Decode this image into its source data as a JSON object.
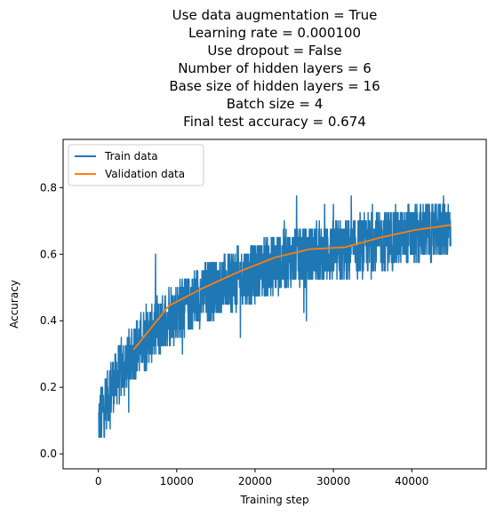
{
  "chart_data": {
    "type": "line",
    "title_lines": [
      "Use data augmentation = True",
      "Learning rate = 0.000100",
      "Use dropout = False",
      "Number of hidden layers = 6",
      "Base size of hidden layers = 16",
      "Batch size = 4",
      "Final test accuracy = 0.674"
    ],
    "xlabel": "Training step",
    "ylabel": "Accuracy",
    "xlim": [
      -4500,
      49500
    ],
    "ylim": [
      -0.045,
      0.945
    ],
    "xticks": [
      0,
      10000,
      20000,
      30000,
      40000
    ],
    "xtick_labels": [
      "0",
      "10000",
      "20000",
      "30000",
      "40000"
    ],
    "yticks": [
      0.0,
      0.2,
      0.4,
      0.6,
      0.8
    ],
    "ytick_labels": [
      "0.0",
      "0.2",
      "0.4",
      "0.6",
      "0.8"
    ],
    "legend_position": "top-left",
    "series": [
      {
        "name": "Train data",
        "color": "#1f77b4",
        "style": "noisy",
        "x_range": [
          0,
          45000
        ],
        "trend_points": [
          [
            0,
            0.1
          ],
          [
            2000,
            0.22
          ],
          [
            5000,
            0.32
          ],
          [
            9000,
            0.42
          ],
          [
            13500,
            0.48
          ],
          [
            18000,
            0.53
          ],
          [
            22500,
            0.57
          ],
          [
            27000,
            0.6
          ],
          [
            31500,
            0.61
          ],
          [
            36000,
            0.64
          ],
          [
            40500,
            0.66
          ],
          [
            45000,
            0.68
          ]
        ],
        "noise_amplitude": 0.09
      },
      {
        "name": "Validation data",
        "color": "#ff7f0e",
        "x": [
          4500,
          9000,
          13500,
          18000,
          22500,
          27000,
          31500,
          36000,
          40500,
          45000
        ],
        "y": [
          0.313,
          0.445,
          0.5,
          0.548,
          0.59,
          0.615,
          0.621,
          0.65,
          0.673,
          0.688
        ]
      }
    ]
  }
}
